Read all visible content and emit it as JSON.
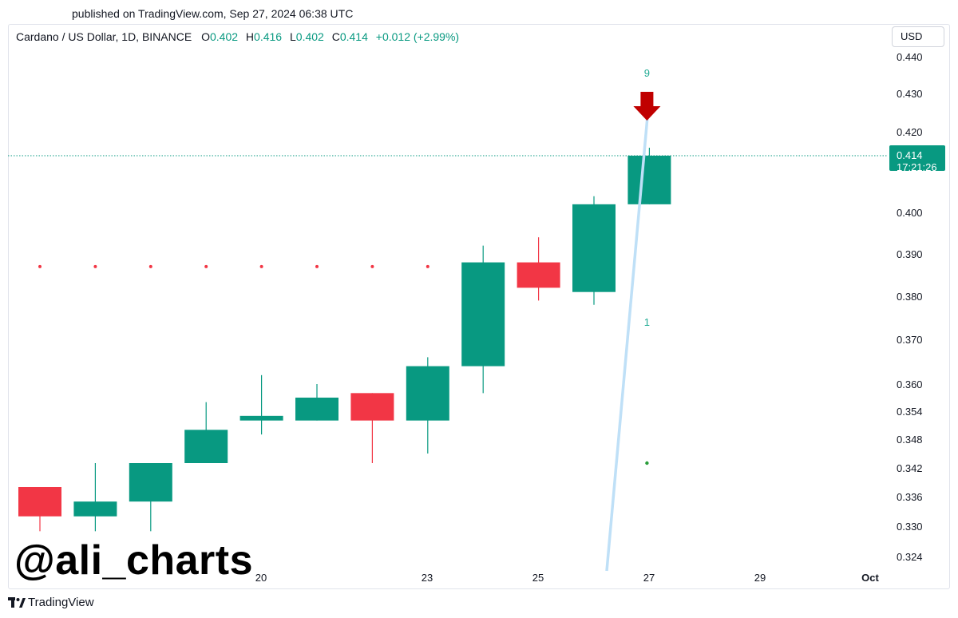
{
  "published": "published on TradingView.com, Sep 27, 2024 06:38 UTC",
  "legend": {
    "symbol": "Cardano / US Dollar, 1D, BINANCE",
    "o_label": "O",
    "o_value": "0.402",
    "h_label": "H",
    "h_value": "0.416",
    "l_label": "L",
    "l_value": "0.402",
    "c_label": "C",
    "c_value": "0.414",
    "change": "+0.012 (+2.99%)"
  },
  "currency": "USD",
  "price_label": {
    "price": "0.414",
    "countdown": "17:21:26"
  },
  "watermark": "@ali_charts",
  "footer_brand": "TradingView",
  "colors": {
    "up": "#089981",
    "down": "#f23645",
    "trend": "#bfe0f7",
    "arrow": "#c00000",
    "seq": "#22ab94",
    "price_line": "#089981"
  },
  "chart_data": {
    "type": "candlestick",
    "y_ticks": [
      "0.440",
      "0.430",
      "0.420",
      "0.400",
      "0.390",
      "0.380",
      "0.370",
      "0.360",
      "0.354",
      "0.348",
      "0.342",
      "0.336",
      "0.330",
      "0.324"
    ],
    "x_ticks": [
      "20",
      "23",
      "25",
      "27",
      "29",
      "Oct"
    ],
    "candles": [
      {
        "o": 0.338,
        "h": 0.338,
        "l": 0.329,
        "c": 0.332
      },
      {
        "o": 0.332,
        "h": 0.343,
        "l": 0.329,
        "c": 0.335
      },
      {
        "o": 0.335,
        "h": 0.343,
        "l": 0.329,
        "c": 0.343
      },
      {
        "o": 0.343,
        "h": 0.356,
        "l": 0.343,
        "c": 0.35
      },
      {
        "o": 0.352,
        "h": 0.362,
        "l": 0.349,
        "c": 0.353
      },
      {
        "o": 0.352,
        "h": 0.36,
        "l": 0.352,
        "c": 0.357
      },
      {
        "o": 0.358,
        "h": 0.358,
        "l": 0.343,
        "c": 0.352
      },
      {
        "o": 0.352,
        "h": 0.366,
        "l": 0.345,
        "c": 0.364
      },
      {
        "o": 0.364,
        "h": 0.392,
        "l": 0.358,
        "c": 0.388
      },
      {
        "o": 0.388,
        "h": 0.394,
        "l": 0.379,
        "c": 0.382
      },
      {
        "o": 0.381,
        "h": 0.404,
        "l": 0.378,
        "c": 0.402
      },
      {
        "o": 0.402,
        "h": 0.416,
        "l": 0.402,
        "c": 0.414
      }
    ],
    "resistance_level": 0.387,
    "current_price": 0.414,
    "annotations": {
      "top_count": "9",
      "mid_count": "1"
    }
  }
}
